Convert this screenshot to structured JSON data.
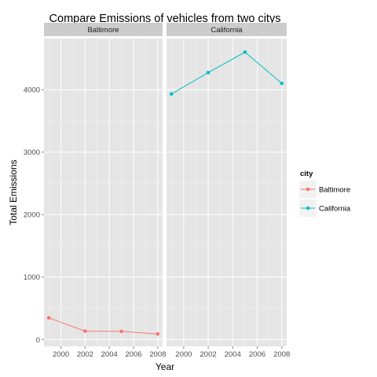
{
  "chart_data": {
    "type": "line",
    "title": "Compare Emissions of vehicles from two citys",
    "xlabel": "Year",
    "ylabel": "Total Emissions",
    "facet_by": "city",
    "xlim": [
      1998.6,
      2008.4
    ],
    "ylim": [
      -110,
      4820
    ],
    "x_ticks": [
      2000,
      2002,
      2004,
      2006,
      2008
    ],
    "y_ticks": [
      0,
      1000,
      2000,
      3000,
      4000
    ],
    "grid": true,
    "legend": {
      "title": "city",
      "position": "right"
    },
    "panels": [
      {
        "label": "Baltimore",
        "series": "Baltimore"
      },
      {
        "label": "California",
        "series": "California"
      }
    ],
    "series": [
      {
        "name": "Baltimore",
        "color": "#F8766D",
        "x": [
          1999,
          2002,
          2005,
          2008
        ],
        "values": [
          346.8,
          134.3,
          130.4,
          88.3
        ]
      },
      {
        "name": "California",
        "color": "#00BFC4",
        "x": [
          1999,
          2002,
          2005,
          2008
        ],
        "values": [
          3931.1,
          4274.0,
          4601.4,
          4101.3
        ]
      }
    ],
    "style": {
      "panel_bg": "#e5e5e5",
      "strip_bg": "#cccccc",
      "grid_major": "#ffffff",
      "grid_minor": "#f2f2f2",
      "tick_text": "#4d4d4d"
    }
  }
}
